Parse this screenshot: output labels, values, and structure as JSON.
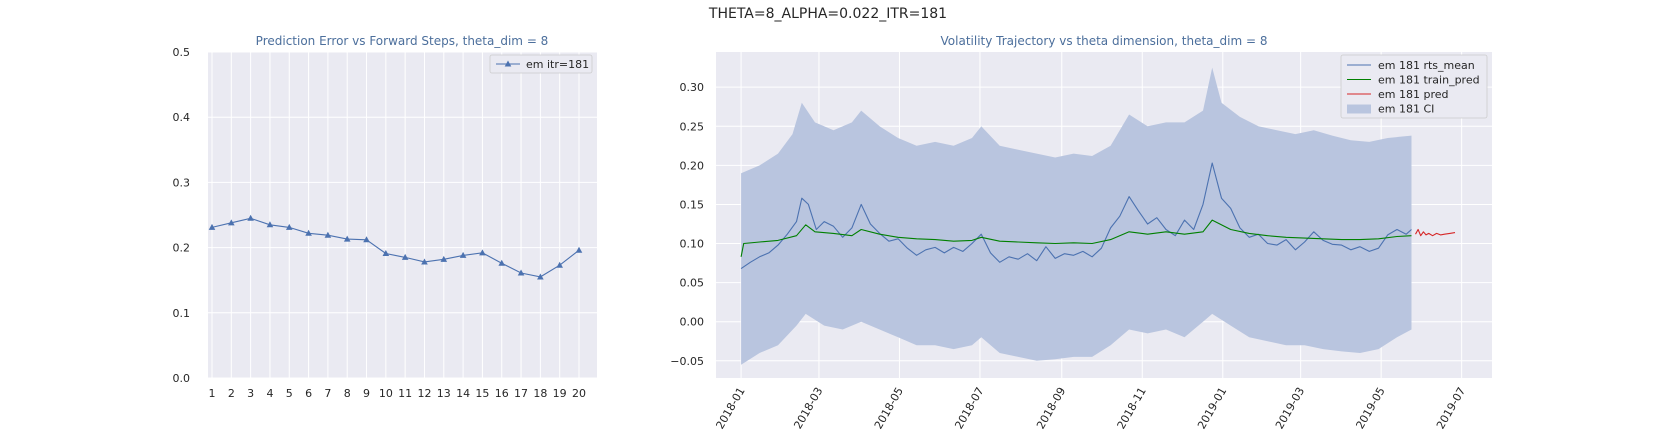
{
  "suptitle": "THETA=8_ALPHA=0.022_ITR=181",
  "chart_data": [
    {
      "type": "line",
      "title": "Prediction Error vs Forward Steps, theta_dim = 8",
      "xlabel": "",
      "ylabel": "",
      "ylim": [
        0,
        0.5
      ],
      "yticks": [
        "0.0",
        "0.1",
        "0.2",
        "0.3",
        "0.4",
        "0.5"
      ],
      "categories": [
        "1",
        "2",
        "3",
        "4",
        "5",
        "6",
        "7",
        "8",
        "9",
        "10",
        "11",
        "12",
        "13",
        "14",
        "15",
        "16",
        "17",
        "18",
        "19",
        "20"
      ],
      "series": [
        {
          "name": "em itr=181",
          "marker": "triangle",
          "color": "#4c72b0",
          "values": [
            0.231,
            0.238,
            0.245,
            0.235,
            0.231,
            0.222,
            0.219,
            0.213,
            0.212,
            0.191,
            0.185,
            0.178,
            0.182,
            0.188,
            0.192,
            0.176,
            0.161,
            0.155,
            0.173,
            0.196
          ]
        }
      ],
      "grid": true,
      "legend": "top-right"
    },
    {
      "type": "line",
      "title": "Volatility Trajectory vs theta dimension, theta_dim = 8",
      "xlabel": "",
      "ylabel": "",
      "xlim": [
        "2017-12-13",
        "2019-07-24"
      ],
      "ylim": [
        -0.072,
        0.345
      ],
      "xticks": [
        "2018-01",
        "2018-03",
        "2018-05",
        "2018-07",
        "2018-09",
        "2018-11",
        "2019-01",
        "2019-03",
        "2019-05",
        "2019-07"
      ],
      "yticks": [
        "−0.05",
        "0.00",
        "0.05",
        "0.10",
        "0.15",
        "0.20",
        "0.25",
        "0.30"
      ],
      "grid": true,
      "legend": "top-right",
      "series": [
        {
          "name": "em 181 rts_mean",
          "color": "#4c72b0",
          "points": [
            [
              "2018-01-01",
              0.068
            ],
            [
              "2018-01-08",
              0.076
            ],
            [
              "2018-01-15",
              0.083
            ],
            [
              "2018-01-22",
              0.088
            ],
            [
              "2018-01-29",
              0.098
            ],
            [
              "2018-02-05",
              0.112
            ],
            [
              "2018-02-12",
              0.128
            ],
            [
              "2018-02-16",
              0.158
            ],
            [
              "2018-02-21",
              0.15
            ],
            [
              "2018-02-27",
              0.118
            ],
            [
              "2018-03-05",
              0.128
            ],
            [
              "2018-03-12",
              0.122
            ],
            [
              "2018-03-19",
              0.108
            ],
            [
              "2018-03-26",
              0.12
            ],
            [
              "2018-04-02",
              0.15
            ],
            [
              "2018-04-09",
              0.125
            ],
            [
              "2018-04-16",
              0.113
            ],
            [
              "2018-04-23",
              0.103
            ],
            [
              "2018-04-30",
              0.106
            ],
            [
              "2018-05-07",
              0.094
            ],
            [
              "2018-05-14",
              0.085
            ],
            [
              "2018-05-21",
              0.092
            ],
            [
              "2018-05-28",
              0.095
            ],
            [
              "2018-06-04",
              0.088
            ],
            [
              "2018-06-11",
              0.095
            ],
            [
              "2018-06-18",
              0.09
            ],
            [
              "2018-06-25",
              0.1
            ],
            [
              "2018-07-02",
              0.112
            ],
            [
              "2018-07-09",
              0.088
            ],
            [
              "2018-07-16",
              0.076
            ],
            [
              "2018-07-23",
              0.083
            ],
            [
              "2018-07-30",
              0.08
            ],
            [
              "2018-08-06",
              0.087
            ],
            [
              "2018-08-13",
              0.078
            ],
            [
              "2018-08-20",
              0.096
            ],
            [
              "2018-08-27",
              0.081
            ],
            [
              "2018-09-03",
              0.087
            ],
            [
              "2018-09-10",
              0.085
            ],
            [
              "2018-09-17",
              0.09
            ],
            [
              "2018-09-24",
              0.083
            ],
            [
              "2018-10-01",
              0.094
            ],
            [
              "2018-10-08",
              0.12
            ],
            [
              "2018-10-15",
              0.135
            ],
            [
              "2018-10-22",
              0.16
            ],
            [
              "2018-10-29",
              0.142
            ],
            [
              "2018-11-05",
              0.125
            ],
            [
              "2018-11-12",
              0.133
            ],
            [
              "2018-11-19",
              0.118
            ],
            [
              "2018-11-26",
              0.11
            ],
            [
              "2018-12-03",
              0.13
            ],
            [
              "2018-12-10",
              0.118
            ],
            [
              "2018-12-17",
              0.15
            ],
            [
              "2018-12-24",
              0.203
            ],
            [
              "2018-12-31",
              0.158
            ],
            [
              "2019-01-07",
              0.145
            ],
            [
              "2019-01-14",
              0.12
            ],
            [
              "2019-01-21",
              0.108
            ],
            [
              "2019-01-28",
              0.112
            ],
            [
              "2019-02-04",
              0.1
            ],
            [
              "2019-02-11",
              0.098
            ],
            [
              "2019-02-18",
              0.105
            ],
            [
              "2019-02-25",
              0.092
            ],
            [
              "2019-03-04",
              0.102
            ],
            [
              "2019-03-11",
              0.115
            ],
            [
              "2019-03-18",
              0.104
            ],
            [
              "2019-03-25",
              0.099
            ],
            [
              "2019-04-01",
              0.098
            ],
            [
              "2019-04-08",
              0.092
            ],
            [
              "2019-04-15",
              0.096
            ],
            [
              "2019-04-22",
              0.09
            ],
            [
              "2019-04-29",
              0.094
            ],
            [
              "2019-05-06",
              0.111
            ],
            [
              "2019-05-13",
              0.118
            ],
            [
              "2019-05-20",
              0.112
            ],
            [
              "2019-05-24",
              0.118
            ]
          ]
        },
        {
          "name": "em 181 train_pred",
          "color": "#008000",
          "points": [
            [
              "2018-01-01",
              0.083
            ],
            [
              "2018-01-03",
              0.1
            ],
            [
              "2018-01-15",
              0.102
            ],
            [
              "2018-01-29",
              0.104
            ],
            [
              "2018-02-12",
              0.11
            ],
            [
              "2018-02-19",
              0.124
            ],
            [
              "2018-02-26",
              0.115
            ],
            [
              "2018-03-12",
              0.113
            ],
            [
              "2018-03-26",
              0.11
            ],
            [
              "2018-04-02",
              0.118
            ],
            [
              "2018-04-16",
              0.112
            ],
            [
              "2018-04-30",
              0.108
            ],
            [
              "2018-05-14",
              0.106
            ],
            [
              "2018-05-28",
              0.105
            ],
            [
              "2018-06-11",
              0.103
            ],
            [
              "2018-06-25",
              0.104
            ],
            [
              "2018-07-02",
              0.108
            ],
            [
              "2018-07-16",
              0.103
            ],
            [
              "2018-07-30",
              0.102
            ],
            [
              "2018-08-13",
              0.101
            ],
            [
              "2018-08-27",
              0.1
            ],
            [
              "2018-09-10",
              0.101
            ],
            [
              "2018-09-24",
              0.1
            ],
            [
              "2018-10-08",
              0.105
            ],
            [
              "2018-10-22",
              0.115
            ],
            [
              "2018-11-05",
              0.112
            ],
            [
              "2018-11-19",
              0.115
            ],
            [
              "2018-12-03",
              0.112
            ],
            [
              "2018-12-17",
              0.115
            ],
            [
              "2018-12-24",
              0.13
            ],
            [
              "2019-01-07",
              0.118
            ],
            [
              "2019-01-21",
              0.113
            ],
            [
              "2019-02-04",
              0.11
            ],
            [
              "2019-02-18",
              0.108
            ],
            [
              "2019-03-04",
              0.107
            ],
            [
              "2019-03-18",
              0.106
            ],
            [
              "2019-04-01",
              0.105
            ],
            [
              "2019-04-15",
              0.105
            ],
            [
              "2019-04-29",
              0.106
            ],
            [
              "2019-05-13",
              0.109
            ],
            [
              "2019-05-24",
              0.11
            ]
          ]
        },
        {
          "name": "em 181 pred",
          "color": "#d62728",
          "points": [
            [
              "2019-05-27",
              0.112
            ],
            [
              "2019-05-29",
              0.118
            ],
            [
              "2019-05-31",
              0.11
            ],
            [
              "2019-06-02",
              0.115
            ],
            [
              "2019-06-04",
              0.111
            ],
            [
              "2019-06-06",
              0.113
            ],
            [
              "2019-06-09",
              0.11
            ],
            [
              "2019-06-12",
              0.113
            ],
            [
              "2019-06-15",
              0.111
            ],
            [
              "2019-06-18",
              0.112
            ],
            [
              "2019-06-22",
              0.113
            ],
            [
              "2019-06-26",
              0.114
            ]
          ]
        },
        {
          "name": "em 181 CI",
          "type": "area",
          "color": "#b9c5df",
          "upper": [
            [
              "2018-01-01",
              0.19
            ],
            [
              "2018-01-15",
              0.2
            ],
            [
              "2018-01-29",
              0.215
            ],
            [
              "2018-02-09",
              0.24
            ],
            [
              "2018-02-16",
              0.28
            ],
            [
              "2018-02-26",
              0.255
            ],
            [
              "2018-03-12",
              0.245
            ],
            [
              "2018-03-26",
              0.255
            ],
            [
              "2018-04-02",
              0.27
            ],
            [
              "2018-04-16",
              0.25
            ],
            [
              "2018-04-30",
              0.235
            ],
            [
              "2018-05-14",
              0.225
            ],
            [
              "2018-05-28",
              0.23
            ],
            [
              "2018-06-11",
              0.225
            ],
            [
              "2018-06-25",
              0.235
            ],
            [
              "2018-07-02",
              0.25
            ],
            [
              "2018-07-16",
              0.225
            ],
            [
              "2018-07-30",
              0.22
            ],
            [
              "2018-08-13",
              0.215
            ],
            [
              "2018-08-27",
              0.21
            ],
            [
              "2018-09-10",
              0.215
            ],
            [
              "2018-09-24",
              0.212
            ],
            [
              "2018-10-08",
              0.225
            ],
            [
              "2018-10-22",
              0.265
            ],
            [
              "2018-11-05",
              0.25
            ],
            [
              "2018-11-19",
              0.255
            ],
            [
              "2018-12-03",
              0.255
            ],
            [
              "2018-12-17",
              0.27
            ],
            [
              "2018-12-24",
              0.325
            ],
            [
              "2018-12-31",
              0.28
            ],
            [
              "2019-01-14",
              0.262
            ],
            [
              "2019-01-28",
              0.25
            ],
            [
              "2019-02-11",
              0.245
            ],
            [
              "2019-02-25",
              0.24
            ],
            [
              "2019-03-11",
              0.245
            ],
            [
              "2019-03-25",
              0.238
            ],
            [
              "2019-04-08",
              0.232
            ],
            [
              "2019-04-22",
              0.23
            ],
            [
              "2019-05-06",
              0.235
            ],
            [
              "2019-05-24",
              0.238
            ]
          ],
          "lower": [
            [
              "2018-01-01",
              -0.055
            ],
            [
              "2018-01-15",
              -0.04
            ],
            [
              "2018-01-29",
              -0.03
            ],
            [
              "2018-02-12",
              -0.005
            ],
            [
              "2018-02-19",
              0.01
            ],
            [
              "2018-03-05",
              -0.005
            ],
            [
              "2018-03-19",
              -0.01
            ],
            [
              "2018-04-02",
              0.0
            ],
            [
              "2018-04-16",
              -0.01
            ],
            [
              "2018-04-30",
              -0.02
            ],
            [
              "2018-05-14",
              -0.03
            ],
            [
              "2018-05-28",
              -0.03
            ],
            [
              "2018-06-11",
              -0.035
            ],
            [
              "2018-06-25",
              -0.03
            ],
            [
              "2018-07-02",
              -0.02
            ],
            [
              "2018-07-16",
              -0.04
            ],
            [
              "2018-07-30",
              -0.045
            ],
            [
              "2018-08-13",
              -0.05
            ],
            [
              "2018-08-27",
              -0.048
            ],
            [
              "2018-09-10",
              -0.045
            ],
            [
              "2018-09-24",
              -0.045
            ],
            [
              "2018-10-08",
              -0.03
            ],
            [
              "2018-10-22",
              -0.01
            ],
            [
              "2018-11-05",
              -0.015
            ],
            [
              "2018-11-19",
              -0.01
            ],
            [
              "2018-12-03",
              -0.02
            ],
            [
              "2018-12-17",
              0.0
            ],
            [
              "2018-12-24",
              0.01
            ],
            [
              "2019-01-07",
              -0.005
            ],
            [
              "2019-01-21",
              -0.02
            ],
            [
              "2019-02-04",
              -0.025
            ],
            [
              "2019-02-18",
              -0.03
            ],
            [
              "2019-03-04",
              -0.03
            ],
            [
              "2019-03-18",
              -0.035
            ],
            [
              "2019-04-01",
              -0.038
            ],
            [
              "2019-04-15",
              -0.04
            ],
            [
              "2019-04-29",
              -0.035
            ],
            [
              "2019-05-13",
              -0.02
            ],
            [
              "2019-05-24",
              -0.01
            ]
          ]
        }
      ]
    }
  ]
}
